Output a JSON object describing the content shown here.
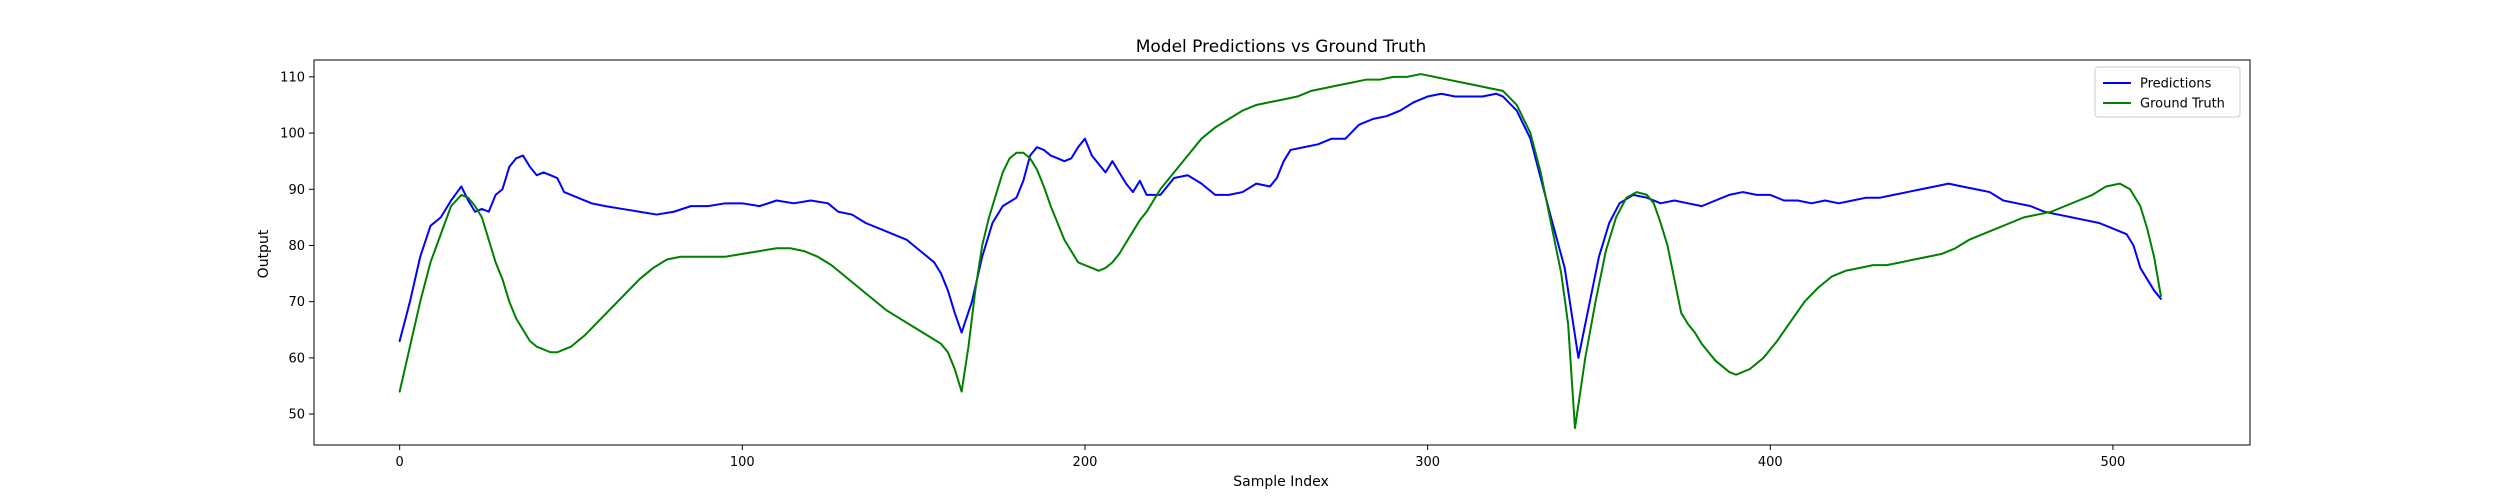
{
  "chart_data": {
    "type": "line",
    "title": "Model Predictions vs Ground Truth",
    "xlabel": "Sample Index",
    "ylabel": "Output",
    "xlim": [
      -25,
      540
    ],
    "ylim": [
      44.5,
      113
    ],
    "xticks": [
      0,
      100,
      200,
      300,
      400,
      500
    ],
    "yticks": [
      50,
      60,
      70,
      80,
      90,
      100,
      110
    ],
    "grid": false,
    "legend_position": "top-right",
    "series": [
      {
        "name": "Predictions",
        "color": "#0000ff",
        "points": [
          [
            0,
            63
          ],
          [
            3,
            70
          ],
          [
            6,
            78
          ],
          [
            9,
            83.5
          ],
          [
            12,
            85
          ],
          [
            15,
            88
          ],
          [
            18,
            90.5
          ],
          [
            20,
            88
          ],
          [
            22,
            86
          ],
          [
            24,
            86.5
          ],
          [
            26,
            86
          ],
          [
            28,
            89
          ],
          [
            30,
            90
          ],
          [
            32,
            94
          ],
          [
            34,
            95.5
          ],
          [
            36,
            96
          ],
          [
            38,
            94
          ],
          [
            40,
            92.5
          ],
          [
            42,
            93
          ],
          [
            44,
            92.5
          ],
          [
            46,
            92
          ],
          [
            48,
            89.5
          ],
          [
            52,
            88.5
          ],
          [
            56,
            87.5
          ],
          [
            60,
            87
          ],
          [
            65,
            86.5
          ],
          [
            70,
            86
          ],
          [
            75,
            85.5
          ],
          [
            80,
            86
          ],
          [
            85,
            87
          ],
          [
            90,
            87
          ],
          [
            95,
            87.5
          ],
          [
            100,
            87.5
          ],
          [
            105,
            87
          ],
          [
            110,
            88
          ],
          [
            115,
            87.5
          ],
          [
            120,
            88
          ],
          [
            125,
            87.5
          ],
          [
            128,
            86
          ],
          [
            132,
            85.5
          ],
          [
            136,
            84
          ],
          [
            140,
            83
          ],
          [
            144,
            82
          ],
          [
            148,
            81
          ],
          [
            152,
            79
          ],
          [
            156,
            77
          ],
          [
            158,
            75
          ],
          [
            160,
            72
          ],
          [
            162,
            68
          ],
          [
            164,
            64.5
          ],
          [
            167,
            70
          ],
          [
            170,
            78
          ],
          [
            173,
            84
          ],
          [
            176,
            87
          ],
          [
            180,
            88.5
          ],
          [
            182,
            91.5
          ],
          [
            184,
            96
          ],
          [
            186,
            97.5
          ],
          [
            188,
            97
          ],
          [
            190,
            96
          ],
          [
            192,
            95.5
          ],
          [
            194,
            95
          ],
          [
            196,
            95.5
          ],
          [
            198,
            97.5
          ],
          [
            200,
            99
          ],
          [
            202,
            96
          ],
          [
            204,
            94.5
          ],
          [
            206,
            93
          ],
          [
            208,
            95
          ],
          [
            210,
            93
          ],
          [
            212,
            91
          ],
          [
            214,
            89.5
          ],
          [
            216,
            91.5
          ],
          [
            218,
            89
          ],
          [
            222,
            89
          ],
          [
            226,
            92
          ],
          [
            230,
            92.5
          ],
          [
            234,
            91
          ],
          [
            238,
            89
          ],
          [
            242,
            89
          ],
          [
            246,
            89.5
          ],
          [
            250,
            91
          ],
          [
            254,
            90.5
          ],
          [
            256,
            92
          ],
          [
            258,
            95
          ],
          [
            260,
            97
          ],
          [
            264,
            97.5
          ],
          [
            268,
            98
          ],
          [
            272,
            99
          ],
          [
            276,
            99
          ],
          [
            280,
            101.5
          ],
          [
            284,
            102.5
          ],
          [
            288,
            103
          ],
          [
            292,
            104
          ],
          [
            296,
            105.5
          ],
          [
            300,
            106.5
          ],
          [
            304,
            107
          ],
          [
            308,
            106.5
          ],
          [
            312,
            106.5
          ],
          [
            316,
            106.5
          ],
          [
            320,
            107
          ],
          [
            322,
            106.5
          ],
          [
            326,
            104
          ],
          [
            330,
            99
          ],
          [
            333,
            92
          ],
          [
            336,
            85
          ],
          [
            340,
            76
          ],
          [
            342,
            68
          ],
          [
            344,
            60
          ],
          [
            347,
            69
          ],
          [
            350,
            78
          ],
          [
            353,
            84
          ],
          [
            356,
            87.5
          ],
          [
            360,
            89
          ],
          [
            364,
            88.5
          ],
          [
            368,
            87.5
          ],
          [
            372,
            88
          ],
          [
            376,
            87.5
          ],
          [
            380,
            87
          ],
          [
            384,
            88
          ],
          [
            388,
            89
          ],
          [
            392,
            89.5
          ],
          [
            396,
            89
          ],
          [
            400,
            89
          ],
          [
            404,
            88
          ],
          [
            408,
            88
          ],
          [
            412,
            87.5
          ],
          [
            416,
            88
          ],
          [
            420,
            87.5
          ],
          [
            424,
            88
          ],
          [
            428,
            88.5
          ],
          [
            432,
            88.5
          ],
          [
            436,
            89
          ],
          [
            440,
            89.5
          ],
          [
            444,
            90
          ],
          [
            448,
            90.5
          ],
          [
            452,
            91
          ],
          [
            456,
            90.5
          ],
          [
            460,
            90
          ],
          [
            464,
            89.5
          ],
          [
            468,
            88
          ],
          [
            472,
            87.5
          ],
          [
            476,
            87
          ],
          [
            480,
            86
          ],
          [
            484,
            85.5
          ],
          [
            488,
            85
          ],
          [
            492,
            84.5
          ],
          [
            496,
            84
          ],
          [
            500,
            83
          ],
          [
            504,
            82
          ],
          [
            506,
            80
          ],
          [
            508,
            76
          ],
          [
            510,
            74
          ],
          [
            512,
            72
          ],
          [
            514,
            70.5
          ]
        ]
      },
      {
        "name": "Ground Truth",
        "color": "#008000",
        "points": [
          [
            0,
            54
          ],
          [
            3,
            62
          ],
          [
            6,
            70
          ],
          [
            9,
            77
          ],
          [
            12,
            82
          ],
          [
            15,
            87
          ],
          [
            18,
            89
          ],
          [
            20,
            88.5
          ],
          [
            22,
            87
          ],
          [
            24,
            85
          ],
          [
            26,
            81
          ],
          [
            28,
            77
          ],
          [
            30,
            74
          ],
          [
            32,
            70
          ],
          [
            34,
            67
          ],
          [
            36,
            65
          ],
          [
            38,
            63
          ],
          [
            40,
            62
          ],
          [
            42,
            61.5
          ],
          [
            44,
            61
          ],
          [
            46,
            61
          ],
          [
            48,
            61.5
          ],
          [
            50,
            62
          ],
          [
            54,
            64
          ],
          [
            58,
            66.5
          ],
          [
            62,
            69
          ],
          [
            66,
            71.5
          ],
          [
            70,
            74
          ],
          [
            74,
            76
          ],
          [
            78,
            77.5
          ],
          [
            82,
            78
          ],
          [
            86,
            78
          ],
          [
            90,
            78
          ],
          [
            95,
            78
          ],
          [
            100,
            78.5
          ],
          [
            105,
            79
          ],
          [
            110,
            79.5
          ],
          [
            114,
            79.5
          ],
          [
            118,
            79
          ],
          [
            122,
            78
          ],
          [
            126,
            76.5
          ],
          [
            130,
            74.5
          ],
          [
            134,
            72.5
          ],
          [
            138,
            70.5
          ],
          [
            142,
            68.5
          ],
          [
            146,
            67
          ],
          [
            150,
            65.5
          ],
          [
            154,
            64
          ],
          [
            158,
            62.5
          ],
          [
            160,
            61
          ],
          [
            162,
            58
          ],
          [
            164,
            54
          ],
          [
            166,
            62
          ],
          [
            168,
            72
          ],
          [
            170,
            80
          ],
          [
            172,
            85
          ],
          [
            174,
            89
          ],
          [
            176,
            93
          ],
          [
            178,
            95.5
          ],
          [
            180,
            96.5
          ],
          [
            182,
            96.5
          ],
          [
            184,
            95.5
          ],
          [
            186,
            93.5
          ],
          [
            188,
            90.5
          ],
          [
            190,
            87
          ],
          [
            192,
            84
          ],
          [
            194,
            81
          ],
          [
            196,
            79
          ],
          [
            198,
            77
          ],
          [
            200,
            76.5
          ],
          [
            202,
            76
          ],
          [
            204,
            75.5
          ],
          [
            206,
            76
          ],
          [
            208,
            77
          ],
          [
            210,
            78.5
          ],
          [
            212,
            80.5
          ],
          [
            214,
            82.5
          ],
          [
            216,
            84.5
          ],
          [
            218,
            86
          ],
          [
            220,
            88
          ],
          [
            222,
            90
          ],
          [
            226,
            93
          ],
          [
            230,
            96
          ],
          [
            234,
            99
          ],
          [
            238,
            101
          ],
          [
            242,
            102.5
          ],
          [
            246,
            104
          ],
          [
            250,
            105
          ],
          [
            254,
            105.5
          ],
          [
            258,
            106
          ],
          [
            262,
            106.5
          ],
          [
            266,
            107.5
          ],
          [
            270,
            108
          ],
          [
            274,
            108.5
          ],
          [
            278,
            109
          ],
          [
            282,
            109.5
          ],
          [
            286,
            109.5
          ],
          [
            290,
            110
          ],
          [
            294,
            110
          ],
          [
            298,
            110.5
          ],
          [
            302,
            110
          ],
          [
            306,
            109.5
          ],
          [
            310,
            109
          ],
          [
            314,
            108.5
          ],
          [
            318,
            108
          ],
          [
            322,
            107.5
          ],
          [
            326,
            105
          ],
          [
            330,
            100
          ],
          [
            333,
            93
          ],
          [
            336,
            84
          ],
          [
            339,
            75
          ],
          [
            341,
            66
          ],
          [
            343,
            47.5
          ],
          [
            346,
            60
          ],
          [
            349,
            70
          ],
          [
            352,
            79
          ],
          [
            355,
            85
          ],
          [
            358,
            88.5
          ],
          [
            361,
            89.5
          ],
          [
            364,
            89
          ],
          [
            366,
            87.5
          ],
          [
            368,
            84
          ],
          [
            370,
            80
          ],
          [
            372,
            74
          ],
          [
            374,
            68
          ],
          [
            376,
            66
          ],
          [
            378,
            64.5
          ],
          [
            380,
            62.5
          ],
          [
            384,
            59.5
          ],
          [
            388,
            57.5
          ],
          [
            390,
            57
          ],
          [
            394,
            58
          ],
          [
            398,
            60
          ],
          [
            402,
            63
          ],
          [
            406,
            66.5
          ],
          [
            410,
            70
          ],
          [
            414,
            72.5
          ],
          [
            418,
            74.5
          ],
          [
            422,
            75.5
          ],
          [
            426,
            76
          ],
          [
            430,
            76.5
          ],
          [
            434,
            76.5
          ],
          [
            438,
            77
          ],
          [
            442,
            77.5
          ],
          [
            446,
            78
          ],
          [
            450,
            78.5
          ],
          [
            454,
            79.5
          ],
          [
            458,
            81
          ],
          [
            462,
            82
          ],
          [
            466,
            83
          ],
          [
            470,
            84
          ],
          [
            474,
            85
          ],
          [
            478,
            85.5
          ],
          [
            482,
            86
          ],
          [
            486,
            87
          ],
          [
            490,
            88
          ],
          [
            494,
            89
          ],
          [
            498,
            90.5
          ],
          [
            502,
            91
          ],
          [
            505,
            90
          ],
          [
            508,
            87
          ],
          [
            510,
            83
          ],
          [
            512,
            78
          ],
          [
            514,
            71
          ]
        ]
      }
    ]
  }
}
